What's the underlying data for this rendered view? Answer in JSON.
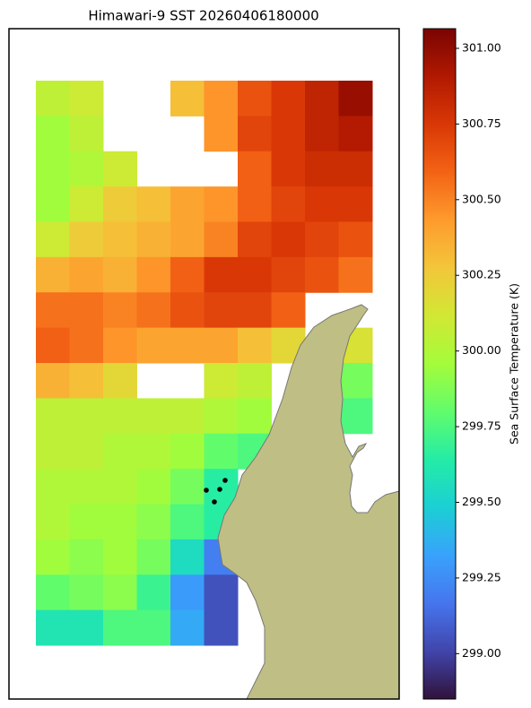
{
  "chart_data": {
    "type": "raster",
    "title": "Himawari-9 SST 20260406180000",
    "colorbar_label": "Sea Surface Temperature (K)",
    "clim": [
      298.85,
      301.065
    ],
    "cticks": [
      {
        "value": 299,
        "label": "299.00"
      },
      {
        "value": 299.25,
        "label": "299.25"
      },
      {
        "value": 299.5,
        "label": "299.50"
      },
      {
        "value": 299.75,
        "label": "299.75"
      },
      {
        "value": 300,
        "label": "300.00"
      },
      {
        "value": 300.25,
        "label": "300.25"
      },
      {
        "value": 300.5,
        "label": "300.50"
      },
      {
        "value": 300.75,
        "label": "300.75"
      },
      {
        "value": 301,
        "label": "301.00"
      }
    ],
    "colormap": [
      "#30123b",
      "#4145ab",
      "#4675ed",
      "#39a2fc",
      "#1bcfd4",
      "#24eca6",
      "#61fc6c",
      "#a4fc3b",
      "#d1e834",
      "#f3c63a",
      "#fe9b2d",
      "#f36315",
      "#d93806",
      "#b11901",
      "#7a0402"
    ],
    "land_color": "#bfbf85",
    "grid": [
      [
        300.05,
        300.1,
        null,
        null,
        300.3,
        300.45,
        300.65,
        300.75,
        300.85,
        300.98
      ],
      [
        299.95,
        300.05,
        null,
        null,
        null,
        300.45,
        300.7,
        300.75,
        300.85,
        300.9
      ],
      [
        299.95,
        300.0,
        300.1,
        null,
        null,
        null,
        300.6,
        300.75,
        300.8,
        300.8
      ],
      [
        299.95,
        300.1,
        300.25,
        300.3,
        300.4,
        300.45,
        300.6,
        300.7,
        300.75,
        300.75
      ],
      [
        300.1,
        300.25,
        300.3,
        300.35,
        300.4,
        300.5,
        300.7,
        300.75,
        300.7,
        300.65
      ],
      [
        300.35,
        300.4,
        300.35,
        300.45,
        300.6,
        300.75,
        300.75,
        300.7,
        300.65,
        300.55
      ],
      [
        300.55,
        300.55,
        300.5,
        300.55,
        300.65,
        300.7,
        300.7,
        300.6,
        null,
        null
      ],
      [
        300.6,
        300.55,
        300.45,
        300.4,
        300.4,
        300.4,
        300.3,
        300.2,
        null,
        300.15
      ],
      [
        300.35,
        300.3,
        300.2,
        null,
        null,
        300.1,
        300.05,
        null,
        null,
        299.85
      ],
      [
        300.05,
        300.05,
        300.05,
        300.05,
        300.05,
        300.0,
        299.95,
        null,
        null,
        299.75
      ],
      [
        300.05,
        300.05,
        300.0,
        300.0,
        299.95,
        299.8,
        299.75,
        null,
        null,
        null
      ],
      [
        300.0,
        300.0,
        300.0,
        299.95,
        299.85,
        299.65,
        null,
        null,
        null,
        null
      ],
      [
        300.0,
        299.95,
        299.95,
        299.9,
        299.75,
        299.65,
        null,
        null,
        null,
        null
      ],
      [
        299.95,
        299.9,
        299.95,
        299.85,
        299.55,
        299.2,
        null,
        null,
        null,
        null
      ],
      [
        299.8,
        299.85,
        299.9,
        299.7,
        299.3,
        299.05,
        null,
        null,
        null,
        null
      ],
      [
        299.6,
        299.6,
        299.75,
        299.75,
        299.35,
        299.05,
        null,
        null,
        null,
        null
      ]
    ]
  }
}
